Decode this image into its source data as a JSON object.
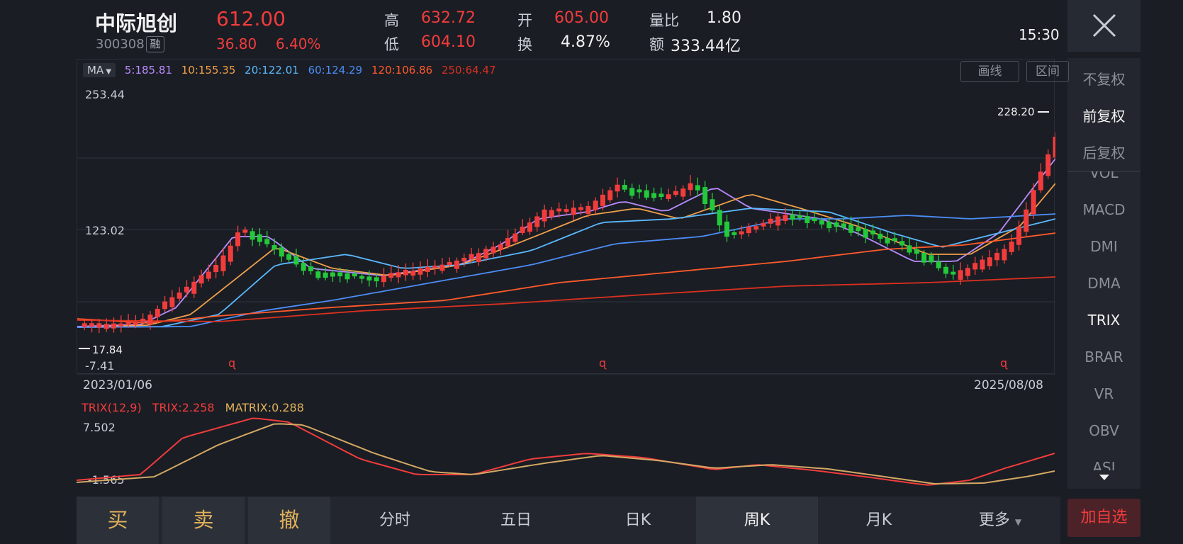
{
  "header": {
    "stock_name": "中际旭创",
    "stock_code": "300308",
    "rong_badge": "融",
    "price": "612.00",
    "change": "36.80",
    "change_pct": "6.40%",
    "high_label": "高",
    "high_value": "632.72",
    "low_label": "低",
    "low_value": "604.10",
    "open_label": "开",
    "open_value": "605.00",
    "turnover_label": "换",
    "turnover_value": "4.87%",
    "volume_ratio_label": "量比",
    "volume_ratio_value": "1.80",
    "amount_label": "额",
    "amount_value": "333.44亿",
    "time": "15:30"
  },
  "ma_bar": {
    "selector": "MA",
    "ma5": "5:185.81",
    "ma10": "10:155.35",
    "ma20": "20:122.01",
    "ma60": "60:124.29",
    "ma120": "120:106.86",
    "ma250": "250:64.47"
  },
  "tools": {
    "draw_line": "画线",
    "range": "区间"
  },
  "axis": {
    "y_top": "253.44",
    "y_mid": "123.02",
    "y_bottom": "-7.41",
    "high_marker": "228.20",
    "low_marker": "17.84",
    "date_start": "2023/01/06",
    "date_end": "2025/08/08"
  },
  "trix": {
    "name": "TRIX(12,9)",
    "trix_value": "TRIX:2.258",
    "matrix_value": "MATRIX:0.288",
    "y_top": "7.502",
    "y_bottom": "-1.565"
  },
  "side_panel": {
    "items": [
      "不复权",
      "前复权",
      "后复权",
      "VOL",
      "MACD",
      "DMI",
      "DMA",
      "TRIX",
      "BRAR",
      "VR",
      "OBV",
      "ASI"
    ],
    "active": [
      "前复权",
      "TRIX"
    ]
  },
  "bottom_bar": {
    "buy": "买",
    "sell": "卖",
    "cancel": "撤",
    "tabs": [
      "分时",
      "五日",
      "日K",
      "周K",
      "月K",
      "更多"
    ],
    "selected_tab": "周K",
    "add_watchlist": "加自选"
  },
  "colors": {
    "up": "#f23c3c",
    "down": "#22c93a",
    "ma5": "#b98cff",
    "ma10": "#f0a04b",
    "ma20": "#5ab9ff",
    "ma60": "#4c8df6",
    "ma120": "#ff5a2b",
    "ma250": "#d9301f",
    "background": "#1a1d24"
  }
}
